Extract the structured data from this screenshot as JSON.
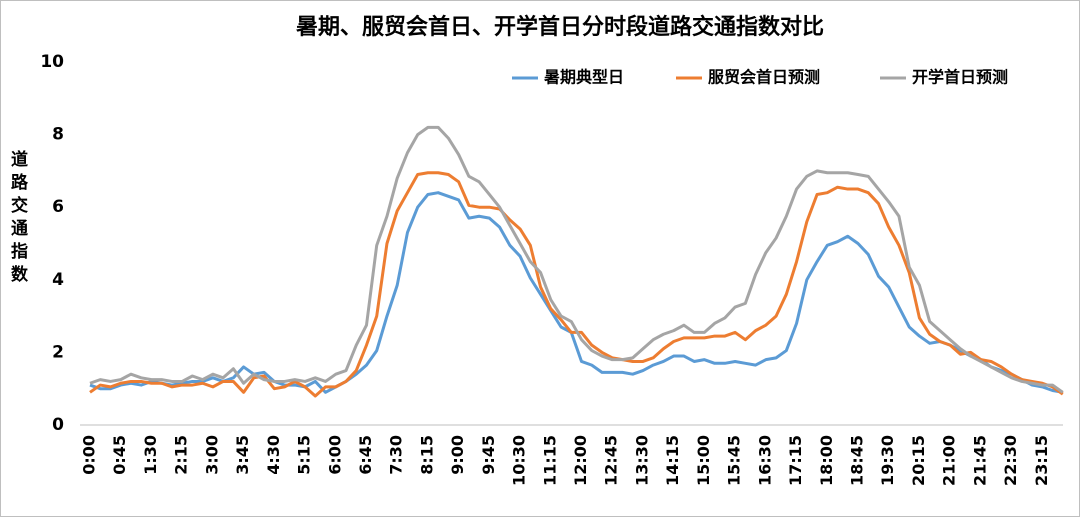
{
  "chart_data": {
    "type": "line",
    "title": "暑期、服贸会首日、开学首日分时段道路交通指数对比",
    "y_label": "道路交通指数",
    "categories": [
      "0:00",
      null,
      null,
      "0:45",
      null,
      null,
      "1:30",
      null,
      null,
      "2:15",
      null,
      null,
      "3:00",
      null,
      null,
      "3:45",
      null,
      null,
      "4:30",
      null,
      null,
      "5:15",
      null,
      null,
      "6:00",
      null,
      null,
      "6:45",
      null,
      null,
      "7:30",
      null,
      null,
      "8:15",
      null,
      null,
      "9:00",
      null,
      null,
      "9:45",
      null,
      null,
      "10:30",
      null,
      null,
      "11:15",
      null,
      null,
      "12:00",
      null,
      null,
      "12:45",
      null,
      null,
      "13:30",
      null,
      null,
      "14:15",
      null,
      null,
      "15:00",
      null,
      null,
      "15:45",
      null,
      null,
      "16:30",
      null,
      null,
      "17:15",
      null,
      null,
      "18:00",
      null,
      null,
      "18:45",
      null,
      null,
      "19:30",
      null,
      null,
      "20:15",
      null,
      null,
      "21:00",
      null,
      null,
      "21:45",
      null,
      null,
      "22:30",
      null,
      null,
      "23:15",
      null,
      null
    ],
    "series": [
      {
        "name": "暑期典型日",
        "color": "#5b9bd5",
        "values": [
          1.1,
          1.0,
          1.0,
          1.1,
          1.15,
          1.1,
          1.2,
          1.15,
          1.1,
          1.15,
          1.2,
          1.2,
          1.3,
          1.2,
          1.3,
          1.6,
          1.4,
          1.45,
          1.2,
          1.1,
          1.1,
          1.05,
          1.2,
          0.9,
          1.05,
          1.2,
          1.4,
          1.65,
          2.05,
          3.0,
          3.85,
          5.3,
          6.0,
          6.35,
          6.4,
          6.3,
          6.2,
          5.7,
          5.75,
          5.7,
          5.45,
          4.95,
          4.65,
          4.05,
          3.6,
          3.15,
          2.7,
          2.55,
          1.75,
          1.65,
          1.45,
          1.45,
          1.45,
          1.4,
          1.5,
          1.65,
          1.75,
          1.9,
          1.9,
          1.75,
          1.8,
          1.7,
          1.7,
          1.75,
          1.7,
          1.65,
          1.8,
          1.85,
          2.05,
          2.8,
          4.0,
          4.5,
          4.95,
          5.05,
          5.2,
          5.0,
          4.7,
          4.1,
          3.8,
          3.25,
          2.7,
          2.45,
          2.25,
          2.3,
          2.2,
          2.05,
          1.9,
          1.8,
          1.6,
          1.5,
          1.4,
          1.25,
          1.1,
          1.05,
          0.95,
          0.9
        ]
      },
      {
        "name": "服贸会首日预测",
        "color": "#ed7d31",
        "values": [
          0.9,
          1.1,
          1.05,
          1.15,
          1.2,
          1.2,
          1.15,
          1.15,
          1.05,
          1.1,
          1.1,
          1.15,
          1.05,
          1.2,
          1.2,
          0.9,
          1.3,
          1.35,
          1.0,
          1.05,
          1.2,
          1.05,
          0.8,
          1.05,
          1.05,
          1.2,
          1.5,
          2.2,
          3.0,
          5.0,
          5.9,
          6.4,
          6.9,
          6.95,
          6.95,
          6.9,
          6.7,
          6.05,
          6.0,
          6.0,
          5.95,
          5.65,
          5.4,
          4.95,
          3.8,
          3.2,
          2.9,
          2.55,
          2.55,
          2.2,
          2.0,
          1.85,
          1.8,
          1.75,
          1.75,
          1.85,
          2.1,
          2.3,
          2.4,
          2.4,
          2.4,
          2.45,
          2.45,
          2.55,
          2.35,
          2.6,
          2.75,
          3.0,
          3.6,
          4.5,
          5.6,
          6.35,
          6.4,
          6.55,
          6.5,
          6.5,
          6.4,
          6.1,
          5.45,
          4.95,
          4.2,
          2.95,
          2.5,
          2.3,
          2.2,
          1.95,
          2.0,
          1.8,
          1.75,
          1.6,
          1.4,
          1.25,
          1.2,
          1.15,
          1.05,
          0.85
        ]
      },
      {
        "name": "开学首日预测",
        "color": "#a5a5a5",
        "values": [
          1.15,
          1.25,
          1.2,
          1.25,
          1.4,
          1.3,
          1.25,
          1.25,
          1.2,
          1.2,
          1.35,
          1.25,
          1.4,
          1.3,
          1.55,
          1.15,
          1.4,
          1.25,
          1.2,
          1.2,
          1.25,
          1.2,
          1.3,
          1.2,
          1.4,
          1.5,
          2.2,
          2.75,
          4.95,
          5.75,
          6.8,
          7.5,
          8.0,
          8.2,
          8.2,
          7.9,
          7.45,
          6.85,
          6.7,
          6.35,
          6.0,
          5.5,
          5.0,
          4.5,
          4.2,
          3.45,
          3.0,
          2.85,
          2.35,
          2.05,
          1.9,
          1.8,
          1.8,
          1.85,
          2.1,
          2.35,
          2.5,
          2.6,
          2.75,
          2.55,
          2.55,
          2.8,
          2.95,
          3.25,
          3.35,
          4.15,
          4.75,
          5.15,
          5.75,
          6.5,
          6.85,
          7.0,
          6.95,
          6.95,
          6.95,
          6.9,
          6.85,
          6.5,
          6.15,
          5.75,
          4.35,
          3.85,
          2.85,
          2.6,
          2.35,
          2.1,
          1.9,
          1.75,
          1.6,
          1.45,
          1.3,
          1.2,
          1.15,
          1.1,
          1.1,
          0.9
        ]
      }
    ],
    "ylim": [
      0,
      10
    ],
    "yticks": [
      0,
      2,
      4,
      6,
      8,
      10
    ],
    "grid": false,
    "legend": "top-right"
  }
}
